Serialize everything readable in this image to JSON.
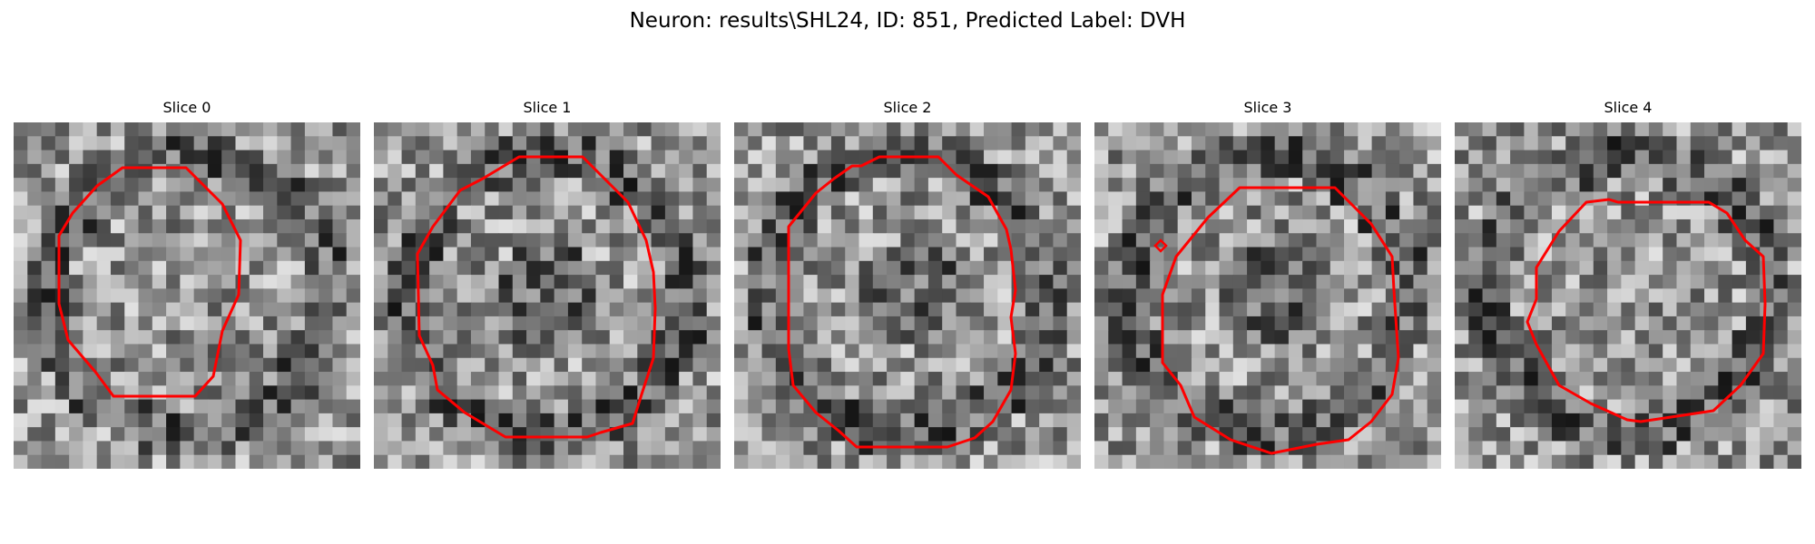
{
  "figure": {
    "title": "Neuron: results\\SHL24, ID: 851, Predicted Label: DVH"
  },
  "slices": [
    {
      "label": "Slice 0",
      "seed": 11,
      "contour": "outline-0",
      "dark_center": false
    },
    {
      "label": "Slice 1",
      "seed": 23,
      "contour": "outline-1",
      "dark_center": true
    },
    {
      "label": "Slice 2",
      "seed": 37,
      "contour": "outline-2",
      "dark_center": true
    },
    {
      "label": "Slice 3",
      "seed": 51,
      "contour": "outline-3",
      "dark_center": true
    },
    {
      "label": "Slice 4",
      "seed": 67,
      "contour": "outline-4",
      "dark_center": false
    }
  ],
  "style": {
    "contour_color": "#ff0000",
    "colormap": "grayscale"
  }
}
